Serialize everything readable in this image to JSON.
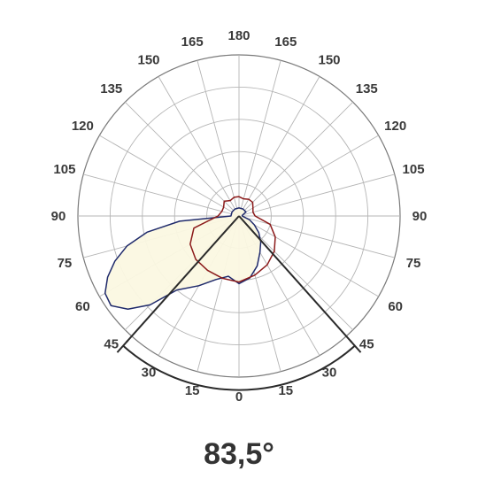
{
  "chart_data": {
    "type": "polar",
    "angle_labels": [
      {
        "angle": 0,
        "text": "0"
      },
      {
        "angle": 15,
        "text": "15"
      },
      {
        "angle": -15,
        "text": "15"
      },
      {
        "angle": 30,
        "text": "30"
      },
      {
        "angle": -30,
        "text": "30"
      },
      {
        "angle": 45,
        "text": "45"
      },
      {
        "angle": -45,
        "text": "45"
      },
      {
        "angle": 60,
        "text": "60"
      },
      {
        "angle": -60,
        "text": "60"
      },
      {
        "angle": 75,
        "text": "75"
      },
      {
        "angle": -75,
        "text": "75"
      },
      {
        "angle": 90,
        "text": "90"
      },
      {
        "angle": -90,
        "text": "90"
      },
      {
        "angle": 105,
        "text": "105"
      },
      {
        "angle": -105,
        "text": "105"
      },
      {
        "angle": 120,
        "text": "120"
      },
      {
        "angle": -120,
        "text": "120"
      },
      {
        "angle": 135,
        "text": "135"
      },
      {
        "angle": -135,
        "text": "135"
      },
      {
        "angle": 150,
        "text": "150"
      },
      {
        "angle": -150,
        "text": "150"
      },
      {
        "angle": 165,
        "text": "165"
      },
      {
        "angle": -165,
        "text": "165"
      },
      {
        "angle": 180,
        "text": "180"
      }
    ],
    "grid": {
      "radial_step_deg": 15,
      "rings": 5,
      "max_value": 1
    },
    "beam_angle": {
      "label": "83,5°",
      "start_deg": -41.75,
      "end_deg": 41.75
    },
    "series": [
      {
        "color": "#1f2a6b",
        "fill": "#fbf8e1",
        "points": [
          [
            -180,
            0.05
          ],
          [
            -150,
            0.05
          ],
          [
            -120,
            0.05
          ],
          [
            -100,
            0.02
          ],
          [
            -90,
            0.02
          ],
          [
            -80,
            0.03
          ],
          [
            -70,
            0.07
          ],
          [
            -60,
            0.11
          ],
          [
            -50,
            0.16
          ],
          [
            -40,
            0.21
          ],
          [
            -30,
            0.26
          ],
          [
            -20,
            0.33
          ],
          [
            -10,
            0.39
          ],
          [
            0,
            0.42
          ],
          [
            10,
            0.38
          ],
          [
            20,
            0.42
          ],
          [
            30,
            0.5
          ],
          [
            40,
            0.6
          ],
          [
            45,
            0.78
          ],
          [
            50,
            0.9
          ],
          [
            55,
            0.97
          ],
          [
            60,
            0.96
          ],
          [
            65,
            0.9
          ],
          [
            70,
            0.82
          ],
          [
            75,
            0.72
          ],
          [
            80,
            0.58
          ],
          [
            85,
            0.37
          ],
          [
            90,
            0.05
          ],
          [
            120,
            0.05
          ],
          [
            150,
            0.05
          ]
        ]
      },
      {
        "color": "#8b1a1a",
        "fill": "none",
        "points": [
          [
            -180,
            0.12
          ],
          [
            -165,
            0.11
          ],
          [
            -150,
            0.12
          ],
          [
            -135,
            0.12
          ],
          [
            -120,
            0.1
          ],
          [
            -105,
            0.09
          ],
          [
            -90,
            0.1
          ],
          [
            -75,
            0.2
          ],
          [
            -60,
            0.26
          ],
          [
            -45,
            0.31
          ],
          [
            -30,
            0.35
          ],
          [
            -15,
            0.38
          ],
          [
            0,
            0.41
          ],
          [
            15,
            0.4
          ],
          [
            30,
            0.39
          ],
          [
            45,
            0.38
          ],
          [
            60,
            0.35
          ],
          [
            75,
            0.29
          ],
          [
            90,
            0.13
          ],
          [
            105,
            0.11
          ],
          [
            120,
            0.11
          ],
          [
            135,
            0.13
          ],
          [
            150,
            0.11
          ],
          [
            165,
            0.12
          ]
        ]
      }
    ]
  }
}
